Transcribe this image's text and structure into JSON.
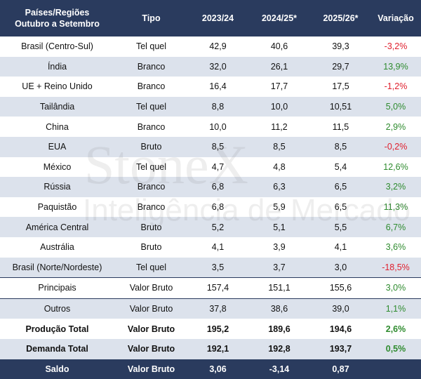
{
  "table": {
    "header": [
      [
        "Países/Regiões",
        "Outubro a Setembro"
      ],
      [
        "Tipo"
      ],
      [
        "2023/24"
      ],
      [
        "2024/25*"
      ],
      [
        "2025/26*"
      ],
      [
        "Variação"
      ]
    ],
    "rows": [
      {
        "cells": [
          "Brasil (Centro-Sul)",
          "Tel quel",
          "42,9",
          "40,6",
          "39,3",
          "-3,2%"
        ],
        "color": "#e0202e"
      },
      {
        "cells": [
          "Índia",
          "Branco",
          "32,0",
          "26,1",
          "29,7",
          "13,9%"
        ],
        "color": "#2e8b2e"
      },
      {
        "cells": [
          "UE + Reino Unido",
          "Branco",
          "16,4",
          "17,7",
          "17,5",
          "-1,2%"
        ],
        "color": "#e0202e"
      },
      {
        "cells": [
          "Tailândia",
          "Tel quel",
          "8,8",
          "10,0",
          "10,51",
          "5,0%"
        ],
        "color": "#2e8b2e"
      },
      {
        "cells": [
          "China",
          "Branco",
          "10,0",
          "11,2",
          "11,5",
          "2,9%"
        ],
        "color": "#2e8b2e"
      },
      {
        "cells": [
          "EUA",
          "Bruto",
          "8,5",
          "8,5",
          "8,5",
          "-0,2%"
        ],
        "color": "#e0202e"
      },
      {
        "cells": [
          "México",
          "Tel quel",
          "4,7",
          "4,8",
          "5,4",
          "12,6%"
        ],
        "color": "#2e8b2e"
      },
      {
        "cells": [
          "Rússia",
          "Branco",
          "6,8",
          "6,3",
          "6,5",
          "3,2%"
        ],
        "color": "#2e8b2e"
      },
      {
        "cells": [
          "Paquistão",
          "Branco",
          "6,8",
          "5,9",
          "6,5",
          "11,3%"
        ],
        "color": "#2e8b2e"
      },
      {
        "cells": [
          "América Central",
          "Bruto",
          "5,2",
          "5,1",
          "5,5",
          "6,7%"
        ],
        "color": "#2e8b2e"
      },
      {
        "cells": [
          "Austrália",
          "Bruto",
          "4,1",
          "3,9",
          "4,1",
          "3,6%"
        ],
        "color": "#2e8b2e"
      },
      {
        "cells": [
          "Brasil (Norte/Nordeste)",
          "Tel quel",
          "3,5",
          "3,7",
          "3,0",
          "-18,5%"
        ],
        "color": "#e0202e"
      },
      {
        "cells": [
          "Principais",
          "Valor Bruto",
          "157,4",
          "151,1",
          "155,6",
          "3,0%"
        ],
        "color": "#2e8b2e"
      },
      {
        "cells": [
          "Outros",
          "Valor Bruto",
          "37,8",
          "38,6",
          "39,0",
          "1,1%"
        ],
        "color": "#2e8b2e"
      },
      {
        "cells": [
          "Produção Total",
          "Valor Bruto",
          "195,2",
          "189,6",
          "194,6",
          "2,6%"
        ],
        "color": "#2e8b2e"
      },
      {
        "cells": [
          "Demanda Total",
          "Valor Bruto",
          "192,1",
          "192,8",
          "193,7",
          "0,5%"
        ],
        "color": "#2e8b2e"
      },
      {
        "cells": [
          "Saldo",
          "Valor Bruto",
          "3,06",
          "-3,14",
          "0,87"
        ],
        "color": "#ffffff"
      }
    ],
    "watermark": [
      "StoneX",
      "Inteligência de Mercado"
    ]
  }
}
